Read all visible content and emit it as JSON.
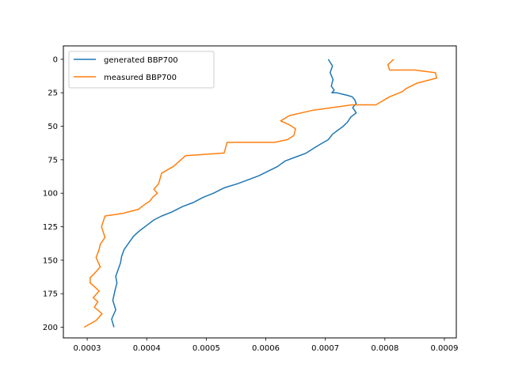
{
  "chart_data": {
    "type": "line",
    "title": "",
    "xlabel": "",
    "ylabel": "",
    "xlim": [
      0.00026,
      0.00092
    ],
    "ylim": [
      208,
      -10
    ],
    "y_inverted": true,
    "grid": false,
    "legend_position": "upper-left",
    "x_ticks": [
      {
        "value": 0.0003,
        "label": "0.0003"
      },
      {
        "value": 0.0004,
        "label": "0.0004"
      },
      {
        "value": 0.0005,
        "label": "0.0005"
      },
      {
        "value": 0.0006,
        "label": "0.0006"
      },
      {
        "value": 0.0007,
        "label": "0.0007"
      },
      {
        "value": 0.0008,
        "label": "0.0008"
      },
      {
        "value": 0.0009,
        "label": "0.0009"
      }
    ],
    "y_ticks": [
      {
        "value": 0,
        "label": "0"
      },
      {
        "value": 25,
        "label": "25"
      },
      {
        "value": 50,
        "label": "50"
      },
      {
        "value": 75,
        "label": "75"
      },
      {
        "value": 100,
        "label": "100"
      },
      {
        "value": 125,
        "label": "125"
      },
      {
        "value": 150,
        "label": "150"
      },
      {
        "value": 175,
        "label": "175"
      },
      {
        "value": 200,
        "label": "200"
      }
    ],
    "series": [
      {
        "name": "generated BBP700",
        "color": "#1f77b4",
        "x": [
          0.000705,
          0.000712,
          0.000708,
          0.000713,
          0.00071,
          0.000715,
          0.000711,
          0.000719,
          0.000728,
          0.000738,
          0.000745,
          0.000749,
          0.000752,
          0.000746,
          0.000752,
          0.000743,
          0.000737,
          0.00073,
          0.000721,
          0.000712,
          0.000705,
          0.000693,
          0.000682,
          0.000668,
          0.00065,
          0.000632,
          0.00062,
          0.000602,
          0.000588,
          0.00057,
          0.000552,
          0.00053,
          0.000512,
          0.000495,
          0.000478,
          0.00046,
          0.000442,
          0.000425,
          0.000412,
          0.0004,
          0.000388,
          0.000378,
          0.00037,
          0.000362,
          0.000358,
          0.000356,
          0.000352,
          0.000348,
          0.00035,
          0.000347,
          0.000343,
          0.000348,
          0.000341,
          0.000345
        ],
        "y": [
          0,
          5,
          10,
          15,
          20,
          23,
          25,
          25,
          26,
          27,
          28,
          30,
          33,
          36,
          40,
          43,
          47,
          50,
          53,
          56,
          60,
          63,
          66,
          70,
          73,
          76,
          80,
          84,
          87,
          90,
          93,
          96,
          100,
          103,
          107,
          110,
          114,
          117,
          120,
          124,
          128,
          132,
          137,
          142,
          147,
          152,
          157,
          162,
          167,
          172,
          180,
          187,
          194,
          200
        ]
      },
      {
        "name": "measured BBP700",
        "color": "#ff7f0e",
        "x": [
          0.000815,
          0.000805,
          0.000808,
          0.00085,
          0.000885,
          0.000887,
          0.000853,
          0.000835,
          0.00083,
          0.000808,
          0.000785,
          0.000745,
          0.00068,
          0.00064,
          0.000625,
          0.00064,
          0.00065,
          0.000647,
          0.000636,
          0.000615,
          0.000535,
          0.00053,
          0.000465,
          0.000445,
          0.000425,
          0.00042,
          0.000412,
          0.000418,
          0.00041,
          0.000405,
          0.000398,
          0.000386,
          0.00036,
          0.00033,
          0.000324,
          0.00033,
          0.000322,
          0.00032,
          0.000315,
          0.000322,
          0.000312,
          0.000305,
          0.000305,
          0.000313,
          0.00032,
          0.00031,
          0.000318,
          0.000312,
          0.000325,
          0.000315,
          0.000295
        ],
        "y": [
          0,
          4,
          8,
          8,
          10,
          14,
          18,
          22,
          24,
          28,
          34,
          34,
          38,
          42,
          46,
          49,
          52,
          57,
          60,
          62,
          62,
          70,
          72,
          80,
          85,
          93,
          97,
          100,
          103,
          106,
          108,
          112,
          115,
          117,
          125,
          133,
          138,
          142,
          148,
          155,
          160,
          163,
          167,
          170,
          173,
          178,
          181,
          185,
          190,
          195,
          200
        ]
      }
    ]
  }
}
